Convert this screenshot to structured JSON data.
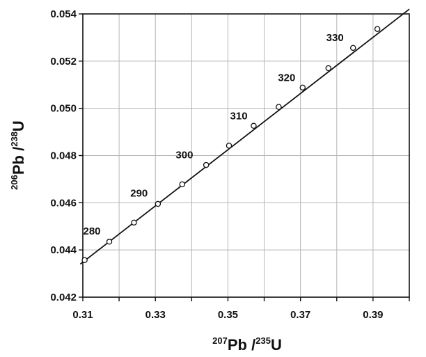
{
  "chart_data": {
    "type": "line",
    "title": "",
    "xlabel": {
      "iso_top": "207",
      "element_top": "Pb",
      "separator": " /",
      "iso_bottom": "235",
      "element_bottom": "U"
    },
    "ylabel": {
      "iso_top": "206",
      "element_top": "Pb",
      "separator": " /",
      "iso_bottom": "238",
      "element_bottom": "U"
    },
    "xlim": [
      0.31,
      0.4
    ],
    "ylim": [
      0.042,
      0.054
    ],
    "x_ticks": [
      0.31,
      0.32,
      0.33,
      0.34,
      0.35,
      0.36,
      0.37,
      0.38,
      0.39,
      0.4
    ],
    "x_tick_labels": [
      "0.31",
      "",
      "0.33",
      "",
      "0.35",
      "",
      "0.37",
      "",
      "0.39",
      ""
    ],
    "y_ticks": [
      0.042,
      0.044,
      0.046,
      0.048,
      0.05,
      0.052,
      0.054
    ],
    "y_tick_labels": [
      "0.042",
      "0.044",
      "0.046",
      "0.048",
      "0.050",
      "0.052",
      "0.054"
    ],
    "grid": true,
    "concordia_line": [
      [
        0.3093,
        0.0434
      ],
      [
        0.4,
        0.0542
      ]
    ],
    "points": [
      {
        "x": 0.3105,
        "y": 0.04357
      },
      {
        "x": 0.3173,
        "y": 0.04435
      },
      {
        "x": 0.3241,
        "y": 0.04516
      },
      {
        "x": 0.3307,
        "y": 0.04595
      },
      {
        "x": 0.3374,
        "y": 0.04678
      },
      {
        "x": 0.344,
        "y": 0.0476
      },
      {
        "x": 0.3503,
        "y": 0.04842
      },
      {
        "x": 0.3571,
        "y": 0.04926
      },
      {
        "x": 0.364,
        "y": 0.05006
      },
      {
        "x": 0.3706,
        "y": 0.05088
      },
      {
        "x": 0.3777,
        "y": 0.0517
      },
      {
        "x": 0.3845,
        "y": 0.05256
      },
      {
        "x": 0.3912,
        "y": 0.05336
      }
    ],
    "age_labels": [
      {
        "text": "280",
        "x": 0.3125,
        "y": 0.04465
      },
      {
        "text": "290",
        "x": 0.3255,
        "y": 0.04626
      },
      {
        "text": "300",
        "x": 0.338,
        "y": 0.04788
      },
      {
        "text": "310",
        "x": 0.353,
        "y": 0.04954
      },
      {
        "text": "320",
        "x": 0.3662,
        "y": 0.05116
      },
      {
        "text": "330",
        "x": 0.3795,
        "y": 0.05285
      }
    ]
  }
}
